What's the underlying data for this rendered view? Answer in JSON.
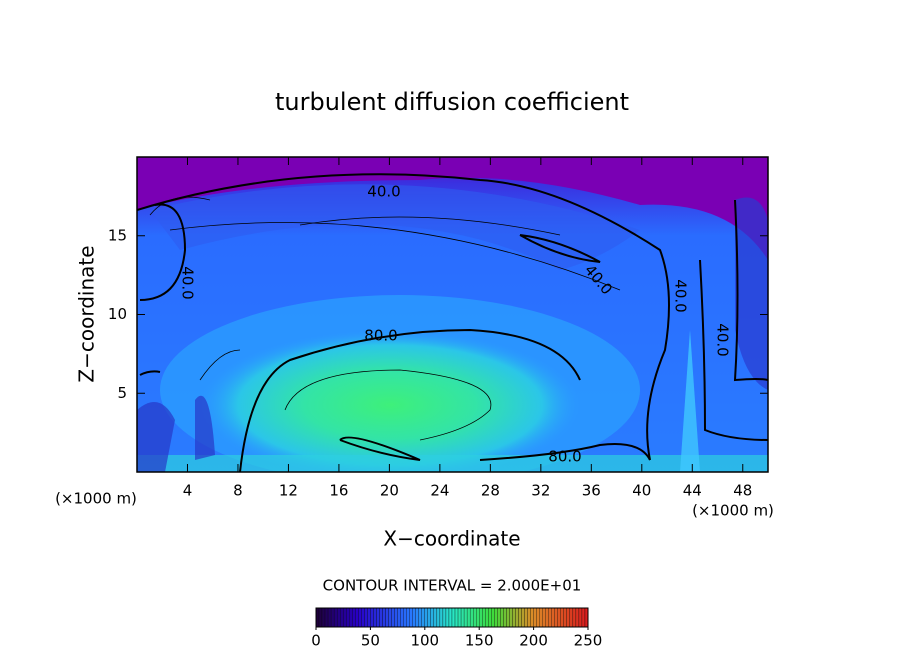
{
  "chart_data": {
    "type": "contour",
    "title": "turbulent diffusion coefficient",
    "xlabel": "X−coordinate",
    "ylabel": "Z−coordinate",
    "x_unit_label": "(×1000 m)",
    "y_unit_label": "(×1000 m)",
    "xlim": [
      0,
      50
    ],
    "xticks": [
      4,
      8,
      12,
      16,
      20,
      24,
      28,
      32,
      36,
      40,
      44,
      48
    ],
    "ylim": [
      0,
      20
    ],
    "yticks": [
      5,
      10,
      15
    ],
    "contour_interval_label": "CONTOUR INTERVAL = 2.000E+01",
    "contour_labels": [
      "40.0",
      "40.0",
      "40.0",
      "40.0",
      "40.0",
      "80.0",
      "80.0"
    ],
    "colorbar": {
      "lim": [
        0,
        250
      ],
      "ticks": [
        0,
        50,
        100,
        150,
        200,
        250
      ]
    }
  }
}
